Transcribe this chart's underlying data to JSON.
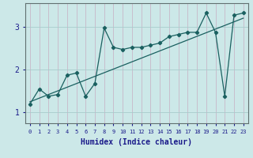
{
  "xlabel": "Humidex (Indice chaleur)",
  "ylabel": "",
  "background_color": "#cce8e8",
  "grid_color": "#a8cccc",
  "line_color": "#1a6060",
  "x_data": [
    0,
    1,
    2,
    3,
    4,
    5,
    6,
    7,
    8,
    9,
    10,
    11,
    12,
    13,
    14,
    15,
    16,
    17,
    18,
    19,
    20,
    21,
    22,
    23
  ],
  "y_data": [
    1.2,
    1.55,
    1.38,
    1.42,
    1.87,
    1.92,
    1.38,
    1.68,
    2.97,
    2.52,
    2.47,
    2.52,
    2.52,
    2.57,
    2.62,
    2.77,
    2.82,
    2.87,
    2.87,
    3.32,
    2.87,
    1.38,
    3.27,
    3.32
  ],
  "trend_x": [
    0,
    23
  ],
  "trend_y": [
    1.25,
    3.2
  ],
  "xlim": [
    -0.5,
    23.5
  ],
  "ylim": [
    0.75,
    3.55
  ],
  "yticks": [
    1,
    2,
    3
  ],
  "xticks": [
    0,
    1,
    2,
    3,
    4,
    5,
    6,
    7,
    8,
    9,
    10,
    11,
    12,
    13,
    14,
    15,
    16,
    17,
    18,
    19,
    20,
    21,
    22,
    23
  ],
  "xlabel_color": "#1a1a8a",
  "tick_color": "#1a1a8a"
}
